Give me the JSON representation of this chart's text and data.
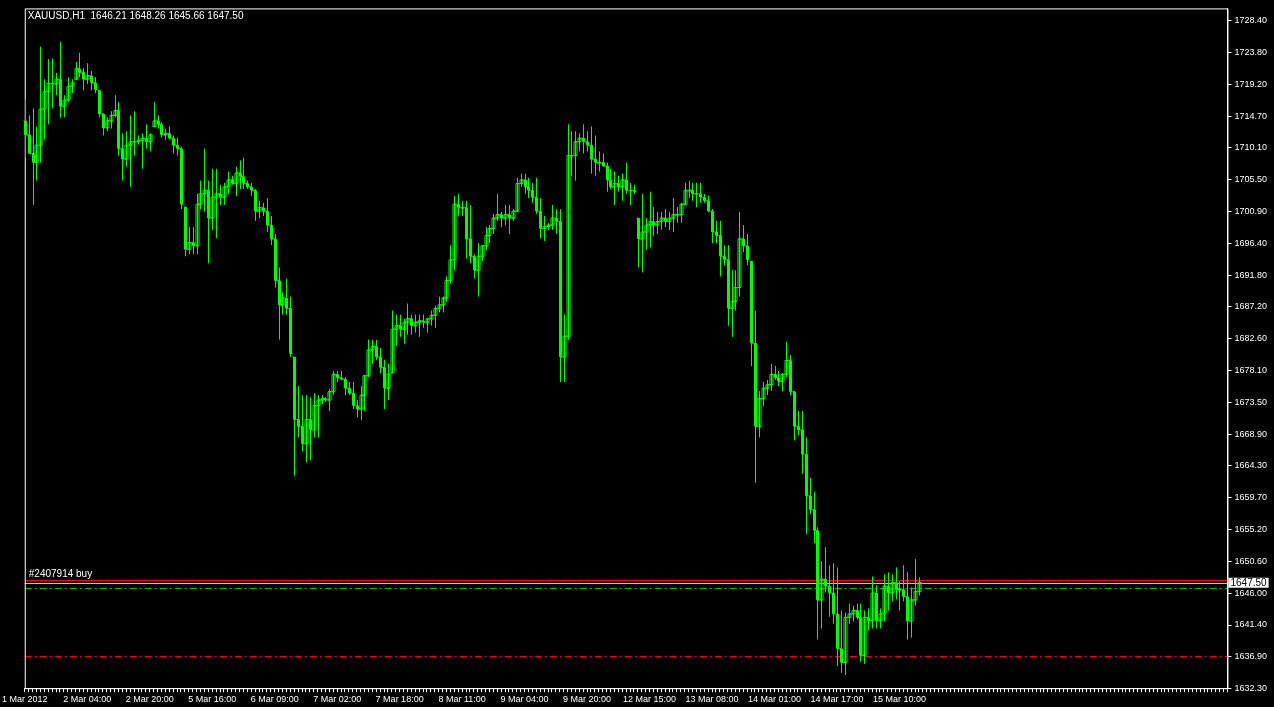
{
  "chart_data": {
    "type": "candlestick",
    "title": "XAUUSD,H1  1646.21 1648.26 1645.66 1647.50",
    "color": "#00ff00",
    "grid": false,
    "categories": [
      "1 Mar 2012",
      null,
      null,
      null,
      null,
      null,
      null,
      null,
      null,
      null,
      null,
      null,
      null,
      null,
      null,
      null,
      "2 Mar 04:00",
      null,
      null,
      null,
      null,
      null,
      null,
      null,
      null,
      null,
      null,
      null,
      null,
      null,
      null,
      null,
      "2 Mar 20:00",
      null,
      null,
      null,
      null,
      null,
      null,
      null,
      null,
      null,
      null,
      null,
      null,
      null,
      null,
      null,
      "5 Mar 16:00",
      null,
      null,
      null,
      null,
      null,
      null,
      null,
      null,
      null,
      null,
      null,
      null,
      null,
      null,
      null,
      "6 Mar 09:00",
      null,
      null,
      null,
      null,
      null,
      null,
      null,
      null,
      null,
      null,
      null,
      null,
      null,
      null,
      null,
      "7 Mar 02:00",
      null,
      null,
      null,
      null,
      null,
      null,
      null,
      null,
      null,
      null,
      null,
      null,
      null,
      null,
      null,
      "7 Mar 18:00",
      null,
      null,
      null,
      null,
      null,
      null,
      null,
      null,
      null,
      null,
      null,
      null,
      null,
      null,
      null,
      "8 Mar 11:00",
      null,
      null,
      null,
      null,
      null,
      null,
      null,
      null,
      null,
      null,
      null,
      null,
      null,
      null,
      null,
      "9 Mar 04:00",
      null,
      null,
      null,
      null,
      null,
      null,
      null,
      null,
      null,
      null,
      null,
      null,
      null,
      null,
      null,
      "9 Mar 20:00",
      null,
      null,
      null,
      null,
      null,
      null,
      null,
      null,
      null,
      null,
      null,
      null,
      null,
      null,
      null,
      "12 Mar 15:00",
      null,
      null,
      null,
      null,
      null,
      null,
      null,
      null,
      null,
      null,
      null,
      null,
      null,
      null,
      null,
      "13 Mar 08:00",
      null,
      null,
      null,
      null,
      null,
      null,
      null,
      null,
      null,
      null,
      null,
      null,
      null,
      null,
      null,
      "14 Mar 01:00",
      null,
      null,
      null,
      null,
      null,
      null,
      null,
      null,
      null,
      null,
      null,
      null,
      null,
      null,
      null,
      "14 Mar 17:00",
      null,
      null,
      null,
      null,
      null,
      null,
      null,
      null,
      null,
      null,
      null,
      null,
      null,
      null,
      null,
      "15 Mar 10:00",
      null,
      null,
      null,
      null,
      null,
      null,
      null,
      null,
      null,
      null,
      null,
      null,
      null,
      null,
      null,
      null,
      null,
      null,
      null,
      null,
      null,
      null,
      null,
      null,
      null,
      null,
      null,
      null,
      null,
      null,
      null,
      null,
      null,
      null,
      null,
      null,
      null,
      null,
      null,
      null,
      null,
      null,
      null,
      null,
      null,
      null,
      null,
      null,
      null,
      null,
      null,
      null,
      null,
      null,
      null,
      null,
      null,
      null,
      null,
      null,
      null,
      null,
      null,
      null,
      null,
      null,
      null,
      null,
      null,
      null,
      null,
      null,
      null,
      null,
      null,
      null,
      null,
      null,
      null,
      null,
      null,
      null,
      null,
      null
    ],
    "ohlc": [
      [
        1714.0,
        1717.1,
        1708.7,
        1712.0
      ],
      [
        1712.0,
        1714.8,
        1709.3,
        1709.3
      ],
      [
        1709.3,
        1715.8,
        1701.9,
        1708.0
      ],
      [
        1708.0,
        1713.2,
        1705.4,
        1710.5
      ],
      [
        1710.5,
        1724.7,
        1708.0,
        1715.7
      ],
      [
        1715.7,
        1720.0,
        1711.3,
        1718.2
      ],
      [
        1718.2,
        1722.9,
        1713.5,
        1719.4
      ],
      [
        1719.4,
        1723.0,
        1715.8,
        1719.3
      ],
      [
        1719.3,
        1720.9,
        1717.7,
        1720.0
      ],
      [
        1720.0,
        1725.4,
        1714.5,
        1716.1
      ],
      [
        1716.1,
        1717.7,
        1714.5,
        1717.0
      ],
      [
        1717.0,
        1720.3,
        1716.7,
        1719.0
      ],
      [
        1719.0,
        1720.0,
        1718.0,
        1719.5
      ],
      [
        1720.0,
        1722.5,
        1720.0,
        1721.5
      ],
      [
        1721.5,
        1723.8,
        1720.3,
        1721.0
      ],
      [
        1721.0,
        1721.6,
        1718.4,
        1720.0
      ],
      [
        1720.0,
        1722.3,
        1719.3,
        1720.5
      ],
      [
        1720.5,
        1721.2,
        1718.4,
        1719.5
      ],
      [
        1719.5,
        1720.3,
        1718.0,
        1718.5
      ],
      [
        1718.4,
        1718.4,
        1714.5,
        1715.0
      ],
      [
        1715.0,
        1715.1,
        1711.9,
        1713.0
      ],
      [
        1713.0,
        1714.5,
        1712.5,
        1714.0
      ],
      [
        1714.0,
        1715.4,
        1712.9,
        1714.8
      ],
      [
        1714.8,
        1717.7,
        1714.5,
        1715.5
      ],
      [
        1715.5,
        1716.7,
        1709.0,
        1710.0
      ],
      [
        1710.0,
        1712.2,
        1705.4,
        1708.5
      ],
      [
        1708.5,
        1712.5,
        1707.4,
        1710.5
      ],
      [
        1710.5,
        1714.8,
        1704.5,
        1711.0
      ],
      [
        1711.0,
        1715.4,
        1709.0,
        1711.0
      ],
      [
        1711.0,
        1711.9,
        1710.6,
        1711.2
      ],
      [
        1711.2,
        1712.2,
        1707.1,
        1711.5
      ],
      [
        1711.5,
        1713.5,
        1710.0,
        1711.0
      ],
      [
        1711.0,
        1712.2,
        1709.6,
        1712.0
      ],
      [
        1713.2,
        1716.7,
        1713.2,
        1714.0
      ],
      [
        1714.0,
        1714.8,
        1712.9,
        1713.5
      ],
      [
        1713.5,
        1713.8,
        1711.6,
        1712.0
      ],
      [
        1712.0,
        1712.9,
        1711.3,
        1712.2
      ],
      [
        1712.2,
        1713.2,
        1711.3,
        1711.5
      ],
      [
        1711.5,
        1711.9,
        1709.3,
        1710.5
      ],
      [
        1710.5,
        1711.6,
        1709.0,
        1710.0
      ],
      [
        1710.0,
        1710.3,
        1701.3,
        1702.0
      ],
      [
        1701.6,
        1701.6,
        1694.5,
        1695.5
      ],
      [
        1695.5,
        1698.7,
        1694.8,
        1696.5
      ],
      [
        1696.5,
        1698.7,
        1694.8,
        1696.0
      ],
      [
        1696.0,
        1703.5,
        1694.8,
        1702.0
      ],
      [
        1702.0,
        1705.4,
        1701.3,
        1703.5
      ],
      [
        1703.5,
        1710.0,
        1700.9,
        1704.0
      ],
      [
        1704.0,
        1705.4,
        1693.5,
        1700.0
      ],
      [
        1700.0,
        1707.1,
        1698.3,
        1703.0
      ],
      [
        1703.0,
        1707.1,
        1697.1,
        1703.5
      ],
      [
        1703.5,
        1704.8,
        1701.9,
        1703.0
      ],
      [
        1703.0,
        1705.1,
        1701.9,
        1704.5
      ],
      [
        1704.5,
        1706.7,
        1703.5,
        1705.5
      ],
      [
        1705.5,
        1706.1,
        1704.8,
        1705.0
      ],
      [
        1705.0,
        1707.4,
        1703.2,
        1706.5
      ],
      [
        1706.5,
        1708.3,
        1704.2,
        1706.0
      ],
      [
        1706.0,
        1708.7,
        1704.2,
        1705.0
      ],
      [
        1705.0,
        1705.4,
        1704.2,
        1704.5
      ],
      [
        1704.5,
        1705.1,
        1703.2,
        1704.0
      ],
      [
        1704.0,
        1704.2,
        1699.6,
        1701.0
      ],
      [
        1701.0,
        1702.5,
        1700.0,
        1701.5
      ],
      [
        1701.5,
        1702.2,
        1700.3,
        1701.0
      ],
      [
        1701.0,
        1702.9,
        1698.0,
        1699.0
      ],
      [
        1699.0,
        1700.3,
        1696.1,
        1697.0
      ],
      [
        1697.0,
        1697.7,
        1690.0,
        1691.0
      ],
      [
        1691.0,
        1692.9,
        1682.5,
        1687.5
      ],
      [
        1687.5,
        1689.3,
        1686.1,
        1688.5
      ],
      [
        1688.5,
        1691.3,
        1686.1,
        1687.0
      ],
      [
        1687.0,
        1688.7,
        1680.0,
        1680.5
      ],
      [
        1680.0,
        1680.0,
        1662.9,
        1671.0
      ],
      [
        1671.0,
        1675.8,
        1668.4,
        1670.0
      ],
      [
        1670.0,
        1674.5,
        1666.4,
        1667.5
      ],
      [
        1667.5,
        1674.5,
        1664.8,
        1671.0
      ],
      [
        1671.0,
        1674.2,
        1665.1,
        1669.5
      ],
      [
        1669.5,
        1674.8,
        1668.4,
        1673.0
      ],
      [
        1673.0,
        1674.5,
        1668.4,
        1673.8
      ],
      [
        1673.8,
        1674.5,
        1673.2,
        1674.0
      ],
      [
        1674.0,
        1674.2,
        1673.5,
        1673.8
      ],
      [
        1673.8,
        1675.4,
        1672.2,
        1675.0
      ],
      [
        1675.0,
        1678.0,
        1674.5,
        1677.5
      ],
      [
        1677.5,
        1678.0,
        1676.4,
        1677.0
      ],
      [
        1677.0,
        1678.0,
        1676.7,
        1676.8
      ],
      [
        1676.8,
        1677.1,
        1674.5,
        1675.5
      ],
      [
        1675.5,
        1676.4,
        1674.5,
        1674.8
      ],
      [
        1674.8,
        1676.4,
        1672.5,
        1673.0
      ],
      [
        1673.0,
        1673.8,
        1671.3,
        1672.5
      ],
      [
        1672.5,
        1675.8,
        1670.9,
        1674.5
      ],
      [
        1674.5,
        1677.4,
        1672.2,
        1677.3
      ],
      [
        1677.3,
        1682.5,
        1677.1,
        1681.0
      ],
      [
        1681.0,
        1682.5,
        1679.0,
        1681.5
      ],
      [
        1681.5,
        1682.5,
        1679.6,
        1680.0
      ],
      [
        1680.0,
        1681.3,
        1677.7,
        1678.5
      ],
      [
        1678.5,
        1679.6,
        1672.5,
        1675.5
      ],
      [
        1675.5,
        1679.0,
        1673.8,
        1677.5
      ],
      [
        1677.7,
        1686.7,
        1677.7,
        1684.0
      ],
      [
        1684.0,
        1686.1,
        1681.6,
        1684.5
      ],
      [
        1684.5,
        1686.1,
        1682.9,
        1684.0
      ],
      [
        1684.0,
        1685.5,
        1681.9,
        1685.0
      ],
      [
        1685.0,
        1687.7,
        1683.2,
        1685.5
      ],
      [
        1685.5,
        1686.1,
        1683.2,
        1684.5
      ],
      [
        1684.5,
        1686.1,
        1683.5,
        1685.0
      ],
      [
        1685.0,
        1686.1,
        1682.9,
        1685.2
      ],
      [
        1685.2,
        1686.1,
        1684.2,
        1685.0
      ],
      [
        1685.0,
        1685.5,
        1683.5,
        1685.5
      ],
      [
        1685.5,
        1686.7,
        1684.5,
        1686.0
      ],
      [
        1686.0,
        1687.4,
        1684.2,
        1687.0
      ],
      [
        1687.0,
        1688.7,
        1686.4,
        1687.5
      ],
      [
        1687.5,
        1688.7,
        1686.4,
        1688.5
      ],
      [
        1688.5,
        1691.6,
        1688.0,
        1691.0
      ],
      [
        1691.0,
        1696.1,
        1690.6,
        1694.0
      ],
      [
        1694.0,
        1703.2,
        1692.5,
        1702.0
      ],
      [
        1702.0,
        1703.5,
        1700.3,
        1701.5
      ],
      [
        1701.5,
        1702.5,
        1700.3,
        1701.5
      ],
      [
        1701.5,
        1702.5,
        1694.2,
        1697.0
      ],
      [
        1697.0,
        1701.9,
        1693.5,
        1694.5
      ],
      [
        1694.5,
        1694.8,
        1691.3,
        1692.5
      ],
      [
        1692.5,
        1696.4,
        1688.7,
        1694.5
      ],
      [
        1694.5,
        1696.1,
        1693.8,
        1696.0
      ],
      [
        1696.0,
        1698.7,
        1695.4,
        1697.5
      ],
      [
        1697.5,
        1699.0,
        1696.4,
        1698.5
      ],
      [
        1698.5,
        1700.6,
        1697.7,
        1700.0
      ],
      [
        1700.0,
        1703.5,
        1699.6,
        1700.5
      ],
      [
        1700.5,
        1700.9,
        1698.7,
        1700.0
      ],
      [
        1700.0,
        1701.9,
        1699.0,
        1700.5
      ],
      [
        1700.5,
        1701.9,
        1697.7,
        1700.0
      ],
      [
        1700.0,
        1701.3,
        1699.6,
        1701.0
      ],
      [
        1701.0,
        1705.8,
        1700.9,
        1705.0
      ],
      [
        1705.0,
        1706.4,
        1704.5,
        1705.5
      ],
      [
        1705.5,
        1706.4,
        1703.5,
        1704.5
      ],
      [
        1704.5,
        1705.8,
        1702.9,
        1704.0
      ],
      [
        1704.0,
        1705.1,
        1702.2,
        1703.0
      ],
      [
        1703.0,
        1705.8,
        1700.6,
        1701.0
      ],
      [
        1701.0,
        1702.9,
        1697.1,
        1698.5
      ],
      [
        1698.5,
        1700.3,
        1696.7,
        1698.8
      ],
      [
        1698.8,
        1699.3,
        1698.3,
        1699.0
      ],
      [
        1699.0,
        1701.9,
        1698.3,
        1700.0
      ],
      [
        1700.0,
        1701.3,
        1697.7,
        1699.5
      ],
      [
        1699.5,
        1701.3,
        1676.4,
        1680.0
      ],
      [
        1680.0,
        1686.1,
        1676.4,
        1683.0
      ],
      [
        1683.0,
        1713.5,
        1682.5,
        1709.0
      ],
      [
        1709.0,
        1712.5,
        1706.1,
        1709.0
      ],
      [
        1709.0,
        1712.5,
        1705.4,
        1711.0
      ],
      [
        1711.0,
        1712.2,
        1709.6,
        1711.5
      ],
      [
        1711.5,
        1713.5,
        1709.3,
        1711.0
      ],
      [
        1711.0,
        1712.5,
        1709.6,
        1710.5
      ],
      [
        1710.5,
        1713.2,
        1706.4,
        1708.5
      ],
      [
        1708.5,
        1711.9,
        1706.1,
        1708.0
      ],
      [
        1708.0,
        1709.6,
        1706.7,
        1708.0
      ],
      [
        1708.0,
        1709.3,
        1707.4,
        1707.5
      ],
      [
        1707.5,
        1708.0,
        1703.8,
        1705.5
      ],
      [
        1705.5,
        1707.1,
        1704.2,
        1704.5
      ],
      [
        1704.5,
        1706.7,
        1701.9,
        1705.0
      ],
      [
        1705.0,
        1706.1,
        1703.8,
        1704.5
      ],
      [
        1704.5,
        1706.4,
        1702.5,
        1705.5
      ],
      [
        1705.5,
        1708.0,
        1703.5,
        1704.0
      ],
      [
        1704.0,
        1705.1,
        1701.9,
        1704.0
      ],
      [
        1704.0,
        1704.8,
        1703.5,
        1703.8
      ],
      [
        1700.0,
        1700.0,
        1692.9,
        1697.0
      ],
      [
        1697.0,
        1703.5,
        1692.2,
        1698.0
      ],
      [
        1698.0,
        1700.0,
        1695.4,
        1699.0
      ],
      [
        1699.0,
        1703.8,
        1695.8,
        1699.5
      ],
      [
        1699.5,
        1701.6,
        1697.4,
        1699.0
      ],
      [
        1699.0,
        1700.9,
        1697.7,
        1699.5
      ],
      [
        1699.5,
        1700.9,
        1698.3,
        1700.0
      ],
      [
        1700.0,
        1701.3,
        1698.7,
        1699.5
      ],
      [
        1699.5,
        1700.9,
        1698.3,
        1700.0
      ],
      [
        1700.0,
        1702.9,
        1698.0,
        1700.5
      ],
      [
        1700.5,
        1701.6,
        1699.3,
        1700.5
      ],
      [
        1700.5,
        1702.2,
        1699.3,
        1702.0
      ],
      [
        1702.0,
        1705.1,
        1701.9,
        1704.0
      ],
      [
        1704.0,
        1705.4,
        1702.9,
        1704.0
      ],
      [
        1704.0,
        1705.1,
        1702.5,
        1703.5
      ],
      [
        1703.5,
        1705.1,
        1701.6,
        1703.5
      ],
      [
        1703.5,
        1705.1,
        1702.2,
        1703.0
      ],
      [
        1703.0,
        1703.5,
        1702.2,
        1702.5
      ],
      [
        1702.5,
        1703.2,
        1700.9,
        1701.0
      ],
      [
        1701.0,
        1701.3,
        1696.4,
        1698.0
      ],
      [
        1698.0,
        1699.6,
        1696.4,
        1697.5
      ],
      [
        1697.5,
        1699.6,
        1691.6,
        1694.5
      ],
      [
        1694.5,
        1696.1,
        1693.2,
        1694.0
      ],
      [
        1694.0,
        1696.1,
        1684.5,
        1687.0
      ],
      [
        1687.0,
        1692.5,
        1682.9,
        1688.0
      ],
      [
        1688.0,
        1692.5,
        1686.7,
        1690.0
      ],
      [
        1690.0,
        1700.9,
        1688.7,
        1697.0
      ],
      [
        1697.0,
        1699.0,
        1695.1,
        1696.0
      ],
      [
        1696.0,
        1697.7,
        1693.2,
        1694.0
      ],
      [
        1693.8,
        1693.8,
        1678.7,
        1682.0
      ],
      [
        1682.0,
        1686.7,
        1661.9,
        1670.0
      ],
      [
        1670.0,
        1675.1,
        1668.4,
        1674.0
      ],
      [
        1674.0,
        1676.4,
        1672.9,
        1675.5
      ],
      [
        1675.5,
        1676.7,
        1674.5,
        1676.0
      ],
      [
        1676.0,
        1679.0,
        1675.1,
        1677.5
      ],
      [
        1677.5,
        1678.7,
        1676.7,
        1677.0
      ],
      [
        1677.0,
        1678.0,
        1675.8,
        1676.5
      ],
      [
        1676.5,
        1677.7,
        1675.1,
        1677.5
      ],
      [
        1677.5,
        1682.2,
        1677.1,
        1679.5
      ],
      [
        1679.5,
        1680.3,
        1674.5,
        1675.0
      ],
      [
        1675.0,
        1675.1,
        1668.0,
        1670.0
      ],
      [
        1670.0,
        1672.2,
        1668.7,
        1669.5
      ],
      [
        1669.5,
        1672.2,
        1663.2,
        1666.0
      ],
      [
        1666.0,
        1668.4,
        1654.5,
        1660.0
      ],
      [
        1660.0,
        1662.6,
        1657.4,
        1658.0
      ],
      [
        1658.0,
        1660.6,
        1653.2,
        1655.0
      ],
      [
        1655.0,
        1655.5,
        1639.3,
        1645.0
      ],
      [
        1645.0,
        1650.6,
        1640.9,
        1648.0
      ],
      [
        1648.0,
        1652.6,
        1646.1,
        1647.0
      ],
      [
        1647.0,
        1650.0,
        1642.6,
        1646.0
      ],
      [
        1646.0,
        1650.3,
        1641.6,
        1643.0
      ],
      [
        1643.0,
        1649.7,
        1635.5,
        1638.0
      ],
      [
        1638.0,
        1643.5,
        1634.5,
        1636.0
      ],
      [
        1636.0,
        1643.2,
        1634.2,
        1642.5
      ],
      [
        1642.5,
        1644.5,
        1641.6,
        1643.0
      ],
      [
        1643.0,
        1644.2,
        1641.9,
        1643.5
      ],
      [
        1643.5,
        1644.5,
        1642.2,
        1642.5
      ],
      [
        1642.5,
        1644.5,
        1636.1,
        1637.0
      ],
      [
        1637.0,
        1643.5,
        1635.8,
        1642.5
      ],
      [
        1642.5,
        1643.8,
        1640.6,
        1642.0
      ],
      [
        1642.0,
        1648.4,
        1640.9,
        1646.0
      ],
      [
        1646.0,
        1647.1,
        1640.9,
        1642.0
      ],
      [
        1642.0,
        1643.8,
        1640.9,
        1643.0
      ],
      [
        1643.0,
        1648.7,
        1641.9,
        1647.0
      ],
      [
        1647.0,
        1649.0,
        1643.5,
        1646.0
      ],
      [
        1646.0,
        1648.7,
        1644.8,
        1647.5
      ],
      [
        1647.5,
        1649.7,
        1645.1,
        1646.5
      ],
      [
        1646.5,
        1647.7,
        1643.5,
        1646.5
      ],
      [
        1646.5,
        1650.0,
        1644.8,
        1645.5
      ],
      [
        1645.5,
        1649.0,
        1639.3,
        1642.0
      ],
      [
        1642.0,
        1646.8,
        1639.6,
        1645.0
      ],
      [
        1645.0,
        1650.9,
        1644.2,
        1646.2
      ],
      [
        1646.21,
        1648.26,
        1645.66,
        1647.5
      ],
      null,
      null,
      null,
      null,
      null,
      null,
      null,
      null,
      null,
      null,
      null,
      null,
      null,
      null,
      null,
      null,
      null,
      null,
      null,
      null,
      null,
      null,
      null,
      null,
      null,
      null,
      null,
      null,
      null,
      null,
      null,
      null,
      null,
      null,
      null,
      null,
      null,
      null,
      null,
      null,
      null,
      null,
      null,
      null,
      null,
      null,
      null,
      null,
      null,
      null,
      null,
      null,
      null,
      null,
      null,
      null,
      null,
      null,
      null,
      null,
      null,
      null,
      null,
      null,
      null,
      null,
      null,
      null,
      null,
      null,
      null,
      null,
      null,
      null,
      null,
      null,
      null,
      null,
      null
    ],
    "ylim": [
      1632.3,
      1730.2
    ],
    "yticks": [
      {
        "value": 1728.4,
        "label": "1728.40"
      },
      {
        "value": 1723.8,
        "label": "1723.80"
      },
      {
        "value": 1719.2,
        "label": "1719.20"
      },
      {
        "value": 1714.7,
        "label": "1714.70"
      },
      {
        "value": 1710.1,
        "label": "1710.10"
      },
      {
        "value": 1705.5,
        "label": "1705.50"
      },
      {
        "value": 1700.9,
        "label": "1700.90"
      },
      {
        "value": 1696.4,
        "label": "1696.40"
      },
      {
        "value": 1691.8,
        "label": "1691.80"
      },
      {
        "value": 1687.2,
        "label": "1687.20"
      },
      {
        "value": 1682.6,
        "label": "1682.60"
      },
      {
        "value": 1678.1,
        "label": "1678.10"
      },
      {
        "value": 1673.5,
        "label": "1673.50"
      },
      {
        "value": 1668.9,
        "label": "1668.90"
      },
      {
        "value": 1664.3,
        "label": "1664.30"
      },
      {
        "value": 1659.7,
        "label": "1659.70"
      },
      {
        "value": 1655.2,
        "label": "1655.20"
      },
      {
        "value": 1650.6,
        "label": "1650.60"
      },
      {
        "value": 1646,
        "label": "1646.00"
      },
      {
        "value": 1641.4,
        "label": "1641.40"
      },
      {
        "value": 1636.9,
        "label": "1636.90"
      },
      {
        "value": 1632.3,
        "label": "1632.30"
      }
    ],
    "ref_lines": [
      {
        "axis": "y",
        "value": 1647.9,
        "label": "#2407914 buy",
        "color": "#ff0000",
        "line_style": "solid"
      },
      {
        "axis": "y",
        "value": 1647.5,
        "label": "1647.50",
        "color": "#c0c0c0",
        "line_style": "solid"
      },
      {
        "axis": "y",
        "value": 1646.8,
        "color": "#00c000",
        "line_style": "dashed"
      },
      {
        "axis": "y",
        "value": 1636.9,
        "color": "#ff0000",
        "line_style": "dashed"
      }
    ]
  }
}
